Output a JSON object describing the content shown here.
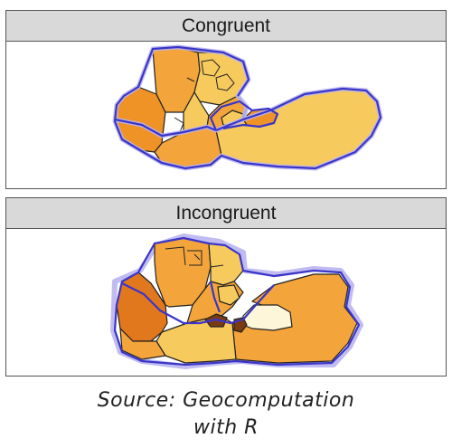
{
  "panels": [
    {
      "title": "Congruent"
    },
    {
      "title": "Incongruent"
    }
  ],
  "caption": {
    "line1": "Source: Geocomputation",
    "line2": "with R"
  },
  "colors": {
    "light": "#f7ca5e",
    "mid": "#f3a43a",
    "dark": "#ef9326",
    "pale": "#fdf6d8",
    "brown": "#7a3b10",
    "orange_dark": "#e1781e",
    "boundary": "#3b35c8",
    "halo": "#b9b5f0",
    "outline": "#222222"
  }
}
